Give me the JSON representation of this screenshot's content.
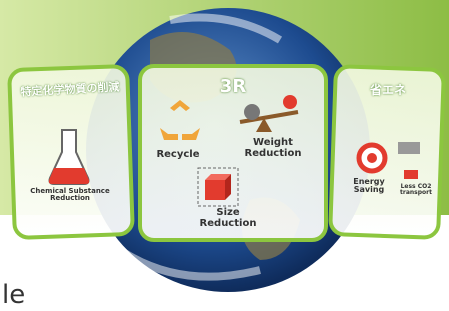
{
  "panels": [
    {
      "title": "特定化学物質の削減",
      "items": [
        {
          "label": "Chemical Substance Reduction"
        }
      ]
    },
    {
      "title": "3R",
      "items": [
        {
          "label": "Recycle"
        },
        {
          "label": "Weight Reduction"
        },
        {
          "label": "Size Reduction"
        }
      ]
    },
    {
      "title": "省エネ",
      "items": [
        {
          "label": "Energy Saving"
        },
        {
          "label": "Less CO2 transport"
        }
      ]
    }
  ],
  "footer": {
    "text": "le"
  }
}
